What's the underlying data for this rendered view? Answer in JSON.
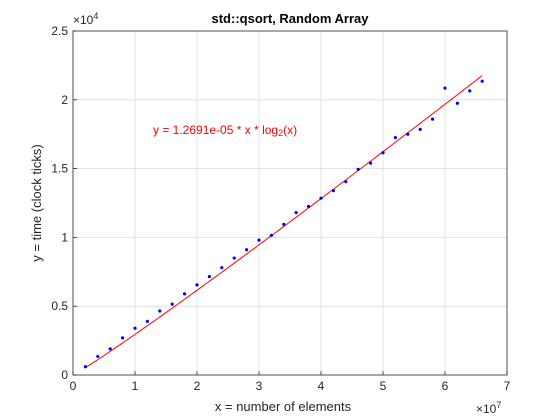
{
  "chart_data": {
    "type": "scatter",
    "title": "std::qsort, Random Array",
    "xlabel": "x = number of elements",
    "ylabel": "y = time (clock ticks)",
    "x_exponent_label": "×10",
    "x_exponent_power": "7",
    "y_exponent_label": "×10",
    "y_exponent_power": "4",
    "xlim": [
      0,
      7
    ],
    "ylim": [
      0,
      2.5
    ],
    "x_scale_factor": 10000000,
    "y_scale_factor": 10000,
    "x_ticks": [
      "0",
      "1",
      "2",
      "3",
      "4",
      "5",
      "6",
      "7"
    ],
    "y_ticks": [
      "0",
      "0.5",
      "1",
      "1.5",
      "2",
      "2.5"
    ],
    "grid": true,
    "annotation": {
      "text_prefix": "y = 1.2691e-05 * x * log",
      "subscript": "2",
      "text_suffix": "(x)",
      "color": "#ff0000"
    },
    "series": [
      {
        "kind": "points",
        "color": "#0000ff",
        "x": [
          2000000,
          4000000,
          6000000,
          8000000,
          10000000,
          12000000,
          14000000,
          16000000,
          18000000,
          20000000,
          22000000,
          24000000,
          26000000,
          28000000,
          30000000,
          32000000,
          34000000,
          36000000,
          38000000,
          40000000,
          42000000,
          44000000,
          46000000,
          48000000,
          50000000,
          52000000,
          54000000,
          56000000,
          58000000,
          60000000,
          62000000,
          64000000,
          66000000
        ],
        "y": [
          600,
          1350,
          1900,
          2700,
          3400,
          3900,
          4650,
          5150,
          5900,
          6550,
          7150,
          7800,
          8500,
          9100,
          9800,
          10150,
          10950,
          11800,
          12250,
          12850,
          13400,
          14050,
          14950,
          15400,
          16150,
          17250,
          17500,
          17850,
          18600,
          20850,
          19750,
          20650,
          21350
        ]
      },
      {
        "kind": "fit",
        "color": "#ff0000",
        "coefficient": 1.2691e-05,
        "x_start": 2000000,
        "x_end": 66000000
      }
    ]
  }
}
